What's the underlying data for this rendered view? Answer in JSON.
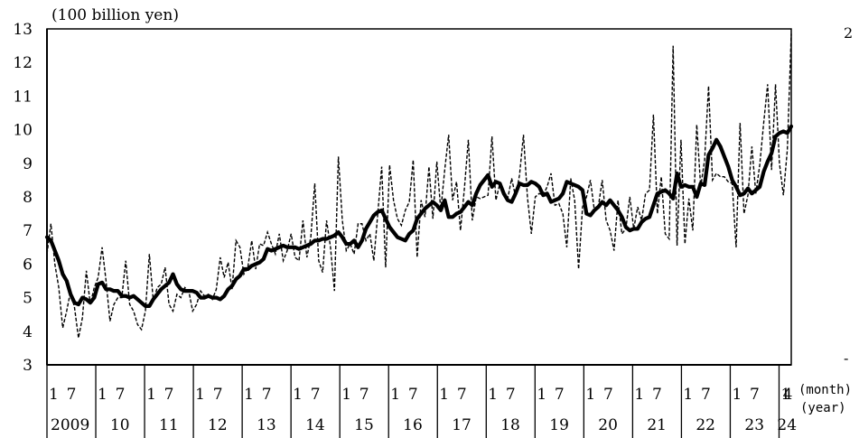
{
  "chart_data": {
    "type": "line",
    "y_unit_label": "(100 billion yen)",
    "ylim": [
      3,
      13
    ],
    "yticks": [
      "3",
      "4",
      "5",
      "6",
      "7",
      "8",
      "9",
      "10",
      "11",
      "12",
      "13"
    ],
    "x_start": "2009-01",
    "x_end": "2024-04",
    "month_ticks": [
      "1",
      "7"
    ],
    "month_end_tick": "4",
    "month_axis_label": "(month)",
    "year_labels": [
      "2009",
      "10",
      "11",
      "12",
      "13",
      "14",
      "15",
      "16",
      "17",
      "18",
      "19",
      "20",
      "21",
      "22",
      "23",
      "24"
    ],
    "year_axis_label": "(year)",
    "right_axis_fragments": [
      "2",
      "",
      "",
      "",
      "",
      "",
      "",
      "",
      "",
      "",
      "",
      "-"
    ],
    "series": [
      {
        "style": "solid-thick",
        "values": [
          6.8,
          6.7,
          6.4,
          6.1,
          5.7,
          5.5,
          5.1,
          4.85,
          4.8,
          5.0,
          4.95,
          4.85,
          5.0,
          5.4,
          5.45,
          5.25,
          5.25,
          5.2,
          5.2,
          5.05,
          5.05,
          5.0,
          5.05,
          4.95,
          4.85,
          4.75,
          4.75,
          4.95,
          5.1,
          5.25,
          5.35,
          5.45,
          5.7,
          5.4,
          5.25,
          5.2,
          5.2,
          5.2,
          5.15,
          5.0,
          5.0,
          5.05,
          5.0,
          5.0,
          4.95,
          5.05,
          5.25,
          5.35,
          5.55,
          5.65,
          5.85,
          5.85,
          5.95,
          6.0,
          6.05,
          6.15,
          6.45,
          6.4,
          6.45,
          6.5,
          6.55,
          6.5,
          6.5,
          6.5,
          6.45,
          6.5,
          6.55,
          6.6,
          6.7,
          6.7,
          6.75,
          6.75,
          6.8,
          6.85,
          6.95,
          6.8,
          6.6,
          6.6,
          6.7,
          6.5,
          6.7,
          7.05,
          7.25,
          7.45,
          7.55,
          7.6,
          7.35,
          7.1,
          6.95,
          6.8,
          6.75,
          6.7,
          6.9,
          7.0,
          7.35,
          7.5,
          7.65,
          7.75,
          7.85,
          7.75,
          7.6,
          7.9,
          7.4,
          7.4,
          7.5,
          7.55,
          7.7,
          7.85,
          7.75,
          8.1,
          8.35,
          8.5,
          8.65,
          8.3,
          8.45,
          8.4,
          8.1,
          7.9,
          7.85,
          8.1,
          8.4,
          8.35,
          8.35,
          8.45,
          8.4,
          8.3,
          8.05,
          8.1,
          7.85,
          7.9,
          7.95,
          8.1,
          8.45,
          8.4,
          8.35,
          8.3,
          8.2,
          7.5,
          7.45,
          7.6,
          7.7,
          7.85,
          7.75,
          7.9,
          7.75,
          7.6,
          7.4,
          7.1,
          7.0,
          7.05,
          7.05,
          7.25,
          7.35,
          7.4,
          7.75,
          8.1,
          8.15,
          8.2,
          8.1,
          7.95,
          8.7,
          8.3,
          8.35,
          8.3,
          8.3,
          8.0,
          8.4,
          8.35,
          9.25,
          9.45,
          9.7,
          9.5,
          9.2,
          8.9,
          8.5,
          8.3,
          8.05,
          8.1,
          8.25,
          8.1,
          8.2,
          8.3,
          8.75,
          9.05,
          9.3,
          9.8,
          9.9,
          9.95,
          9.9,
          10.1
        ]
      },
      {
        "style": "dashed-thin",
        "values": [
          6.3,
          7.2,
          6.0,
          5.3,
          4.1,
          4.6,
          5.2,
          4.7,
          3.8,
          4.4,
          5.8,
          4.8,
          5.3,
          5.6,
          6.5,
          5.5,
          4.3,
          4.8,
          5.0,
          5.0,
          6.1,
          4.8,
          4.6,
          4.2,
          4.05,
          4.6,
          6.3,
          4.9,
          5.3,
          5.4,
          5.9,
          4.8,
          4.6,
          5.1,
          5.0,
          5.3,
          5.2,
          4.6,
          4.8,
          5.2,
          5.05,
          5.1,
          4.95,
          5.25,
          6.2,
          5.6,
          6.05,
          5.25,
          6.7,
          6.5,
          5.7,
          5.9,
          6.7,
          5.85,
          6.6,
          6.55,
          6.95,
          6.6,
          6.3,
          6.9,
          6.1,
          6.4,
          6.9,
          6.2,
          6.1,
          7.3,
          6.2,
          6.8,
          8.4,
          6.1,
          5.75,
          7.3,
          6.5,
          5.2,
          9.2,
          7.3,
          6.4,
          6.6,
          6.3,
          7.2,
          7.2,
          6.7,
          6.9,
          6.1,
          7.5,
          8.9,
          5.9,
          8.95,
          7.9,
          7.35,
          7.15,
          7.6,
          7.85,
          9.1,
          6.2,
          7.9,
          7.4,
          8.9,
          7.35,
          9.05,
          7.6,
          8.8,
          9.85,
          7.9,
          8.45,
          7.0,
          8.25,
          9.7,
          7.3,
          8.0,
          7.95,
          8.0,
          8.05,
          9.8,
          7.9,
          8.4,
          8.1,
          7.95,
          8.55,
          8.0,
          8.65,
          9.85,
          8.0,
          6.9,
          8.0,
          8.1,
          8.05,
          8.3,
          8.7,
          7.75,
          7.8,
          7.5,
          6.5,
          8.55,
          7.9,
          5.85,
          7.7,
          8.0,
          8.5,
          7.6,
          7.7,
          8.5,
          7.3,
          7.0,
          6.4,
          7.9,
          6.9,
          7.05,
          8.0,
          7.05,
          7.7,
          7.3,
          8.1,
          8.2,
          10.45,
          7.5,
          8.6,
          6.9,
          6.75,
          12.5,
          6.55,
          9.7,
          6.6,
          7.95,
          7.0,
          10.15,
          8.3,
          9.1,
          11.3,
          8.5,
          8.7,
          8.6,
          8.6,
          8.45,
          8.4,
          6.5,
          10.2,
          7.5,
          8.05,
          9.5,
          8.1,
          8.95,
          10.2,
          11.35,
          8.8,
          11.35,
          9.0,
          8.05,
          9.4,
          12.85
        ]
      }
    ]
  }
}
